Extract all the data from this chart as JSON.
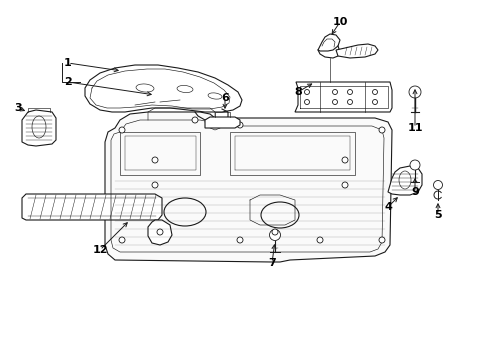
{
  "bg_color": "#ffffff",
  "line_color": "#1a1a1a",
  "label_color": "#000000",
  "lw_main": 0.8,
  "lw_thin": 0.45,
  "lw_detail": 0.3,
  "figsize": [
    4.89,
    3.6
  ],
  "dpi": 100
}
